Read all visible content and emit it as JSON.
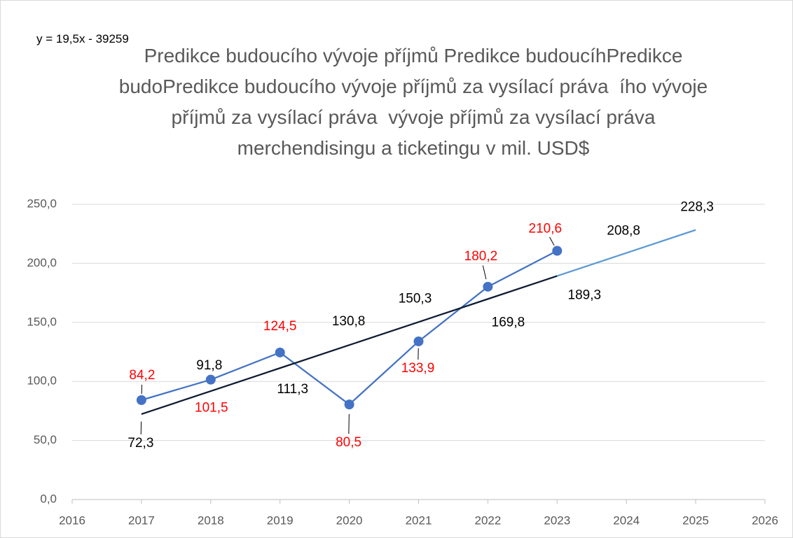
{
  "chart_data": {
    "type": "line",
    "title": "Predikce budoucího vývoje příjmů Predikce budoucíhPredikce budoPredikce budoucího vývoje příjmů za vysílací práva  ího vývoje příjmů za vysílací práva  vývoje příjmů za vysílací práva  merchendisingu a ticketingu v mil. USD$",
    "annotation": "y = 19,5x - 39259",
    "xlim": [
      2016,
      2026
    ],
    "xticks": [
      2016,
      2017,
      2018,
      2019,
      2020,
      2021,
      2022,
      2023,
      2024,
      2025,
      2026
    ],
    "ylim": [
      0,
      250
    ],
    "yticks": [
      {
        "value": 0,
        "label": "0,0"
      },
      {
        "value": 50,
        "label": "50,0"
      },
      {
        "value": 100,
        "label": "100,0"
      },
      {
        "value": 150,
        "label": "150,0"
      },
      {
        "value": 200,
        "label": "200,0"
      },
      {
        "value": 250,
        "label": "250,0"
      }
    ],
    "grid": true,
    "series": [
      {
        "color": "#4472c4",
        "label_color": "#ff0000",
        "markers": true,
        "x": [
          2017,
          2018,
          2019,
          2020,
          2021,
          2022,
          2023
        ],
        "values": [
          84.2,
          101.5,
          124.5,
          80.5,
          133.9,
          180.2,
          210.6
        ],
        "value_labels": [
          "84,2",
          "101,5",
          "124,5",
          "80,5",
          "133,9",
          "180,2",
          "210,6"
        ]
      },
      {
        "color": "#0d1b33",
        "label_color": "#000000",
        "markers": false,
        "x": [
          2017,
          2018,
          2019,
          2020,
          2021,
          2022,
          2023
        ],
        "values": [
          72.3,
          91.8,
          111.3,
          130.8,
          150.3,
          169.8,
          189.3
        ],
        "value_labels": [
          "72,3",
          "91,8",
          "111,3",
          "130,8",
          "150,3",
          "169,8",
          "189,3"
        ]
      },
      {
        "color": "#5b9bd5",
        "label_color": "#000000",
        "markers": false,
        "x": [
          2023,
          2024,
          2025
        ],
        "values": [
          189.3,
          208.8,
          228.3
        ],
        "value_labels": [
          null,
          "208,8",
          "228,3"
        ]
      }
    ]
  }
}
